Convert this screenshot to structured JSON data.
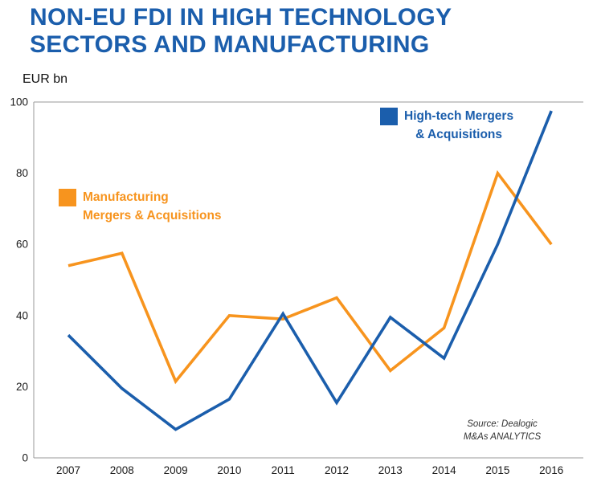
{
  "title": {
    "line1": "NON-EU FDI IN HIGH TECHNOLOGY",
    "line2": "SECTORS AND MANUFACTURING"
  },
  "ylabel": "EUR bn",
  "source": {
    "line1": "Source: Dealogic",
    "line2": "M&As ANALYTICS"
  },
  "colors": {
    "title_blue": "#1B5EAC",
    "hightech_blue": "#1B5EAC",
    "manufacturing_orange": "#F7941E",
    "axis_gray": "#9A9A9A",
    "tick_text": "#1A1A1A"
  },
  "chart_data": {
    "type": "line",
    "title": "NON-EU FDI IN HIGH TECHNOLOGY SECTORS AND MANUFACTURING",
    "xlabel": "",
    "ylabel": "EUR bn",
    "x": [
      2007,
      2008,
      2009,
      2010,
      2011,
      2012,
      2013,
      2014,
      2015,
      2016
    ],
    "ylim": [
      0,
      100
    ],
    "yticks": [
      0,
      20,
      40,
      60,
      80,
      100
    ],
    "grid": "top-line-only",
    "legend_position": "inside",
    "series": [
      {
        "name": "High-tech Mergers & Acquisitions",
        "legend_lines": [
          "High-tech Mergers",
          "& Acquisitions"
        ],
        "color": "#1B5EAC",
        "values": [
          34.5,
          19.5,
          8,
          16.5,
          40.5,
          15.5,
          39.5,
          28,
          60,
          97.5
        ]
      },
      {
        "name": "Manufacturing Mergers & Acquisitions",
        "legend_lines": [
          "Manufacturing",
          "Mergers & Acquisitions"
        ],
        "color": "#F7941E",
        "values": [
          54,
          57.5,
          21.5,
          40,
          39,
          45,
          24.5,
          36.5,
          80,
          60
        ]
      }
    ],
    "annotations": [
      "Source: Dealogic M&As ANALYTICS"
    ]
  }
}
